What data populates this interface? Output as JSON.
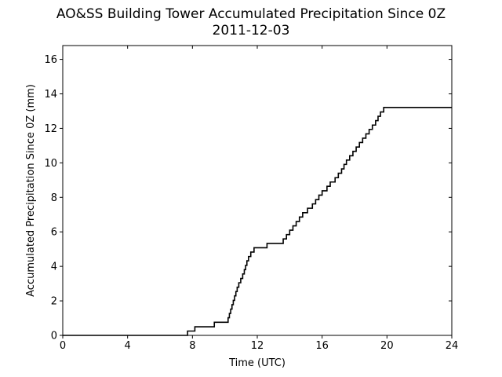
{
  "chart_data": {
    "type": "line",
    "title": "AO&SS Building Tower Accumulated Precipitation Since 0Z",
    "subtitle": "2011-12-03",
    "xlabel": "Time (UTC)",
    "ylabel": "Accumulated Precipitation Since 0Z (mm)",
    "xlim": [
      0,
      24
    ],
    "ylim": [
      0,
      16.8
    ],
    "x_ticks": [
      0,
      4,
      8,
      12,
      16,
      20,
      24
    ],
    "y_ticks": [
      0,
      2,
      4,
      6,
      8,
      10,
      12,
      14,
      16
    ],
    "grid": false,
    "line_color": "#000000",
    "step": "post",
    "series": [
      {
        "x": [
          0,
          7.7,
          8.15,
          9.35,
          10.2,
          10.28,
          10.36,
          10.44,
          10.52,
          10.6,
          10.68,
          10.76,
          10.86,
          10.98,
          11.1,
          11.2,
          11.28,
          11.36,
          11.46,
          11.6,
          11.8,
          12.0,
          12.6,
          13.6,
          13.8,
          14.0,
          14.2,
          14.4,
          14.6,
          14.8,
          15.1,
          15.4,
          15.6,
          15.8,
          16.0,
          16.3,
          16.5,
          16.8,
          17.0,
          17.2,
          17.35,
          17.5,
          17.7,
          17.9,
          18.1,
          18.3,
          18.5,
          18.7,
          18.9,
          19.1,
          19.3,
          19.45,
          19.6,
          19.8,
          20.0,
          24.0
        ],
        "y": [
          0,
          0.25,
          0.5,
          0.76,
          1.02,
          1.27,
          1.52,
          1.78,
          2.03,
          2.29,
          2.54,
          2.79,
          3.05,
          3.3,
          3.56,
          3.81,
          4.06,
          4.32,
          4.57,
          4.83,
          5.08,
          5.08,
          5.33,
          5.59,
          5.84,
          6.1,
          6.35,
          6.6,
          6.86,
          7.11,
          7.37,
          7.62,
          7.87,
          8.13,
          8.38,
          8.64,
          8.89,
          9.14,
          9.4,
          9.65,
          9.91,
          10.16,
          10.41,
          10.67,
          10.92,
          11.18,
          11.43,
          11.68,
          11.94,
          12.19,
          12.45,
          12.7,
          12.95,
          13.21,
          13.21,
          13.21
        ]
      }
    ]
  }
}
